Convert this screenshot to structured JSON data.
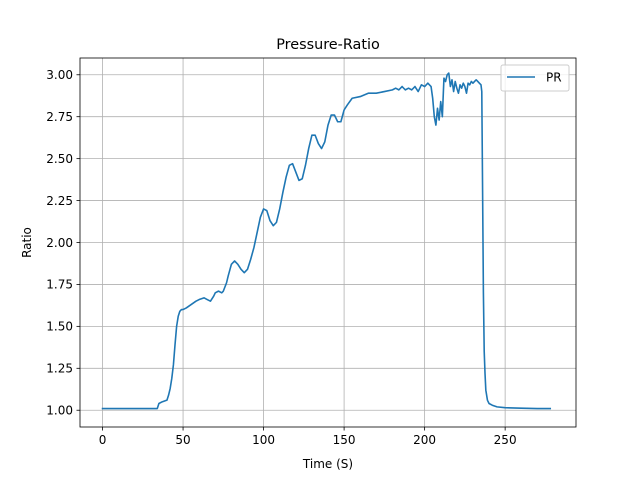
{
  "chart_data": {
    "type": "line",
    "title": "Pressure-Ratio",
    "xlabel": "Time (S)",
    "ylabel": "Ratio",
    "xlim": [
      -14,
      294
    ],
    "ylim": [
      0.9,
      3.1
    ],
    "xticks": [
      0,
      50,
      100,
      150,
      200,
      250
    ],
    "yticks": [
      1.0,
      1.25,
      1.5,
      1.75,
      2.0,
      2.25,
      2.5,
      2.75,
      3.0
    ],
    "ytick_labels": [
      "1.00",
      "1.25",
      "1.50",
      "1.75",
      "2.00",
      "2.25",
      "2.50",
      "2.75",
      "3.00"
    ],
    "grid": true,
    "legend": "top-right",
    "series": [
      {
        "name": "PR",
        "color": "#1f77b4",
        "x": [
          0,
          10,
          20,
          30,
          34,
          35,
          37,
          40,
          41,
          42,
          43,
          44,
          45,
          46,
          47,
          48,
          49,
          50,
          52,
          55,
          58,
          60,
          63,
          65,
          67,
          69,
          70,
          72,
          74,
          75,
          77,
          78,
          80,
          82,
          84,
          86,
          88,
          90,
          92,
          94,
          96,
          98,
          100,
          102,
          104,
          106,
          108,
          110,
          112,
          114,
          116,
          118,
          120,
          122,
          124,
          126,
          128,
          130,
          132,
          134,
          136,
          138,
          140,
          142,
          144,
          146,
          148,
          150,
          152,
          155,
          160,
          165,
          170,
          175,
          180,
          182,
          184,
          186,
          188,
          190,
          192,
          194,
          196,
          198,
          200,
          202,
          204,
          205,
          206,
          207,
          208,
          209,
          210,
          211,
          212,
          213,
          214,
          215,
          216,
          217,
          218,
          219,
          220,
          221,
          222,
          223,
          224,
          225,
          226,
          227,
          228,
          229,
          230,
          231,
          232,
          233,
          234,
          235,
          235.5,
          236,
          236.5,
          237,
          237.5,
          238,
          239,
          240,
          242,
          245,
          250,
          260,
          270,
          278
        ],
        "y": [
          1.01,
          1.01,
          1.01,
          1.01,
          1.01,
          1.04,
          1.05,
          1.06,
          1.09,
          1.13,
          1.19,
          1.27,
          1.39,
          1.5,
          1.56,
          1.59,
          1.6,
          1.6,
          1.61,
          1.63,
          1.65,
          1.66,
          1.67,
          1.66,
          1.65,
          1.68,
          1.7,
          1.71,
          1.7,
          1.71,
          1.76,
          1.8,
          1.87,
          1.89,
          1.87,
          1.84,
          1.82,
          1.84,
          1.9,
          1.97,
          2.06,
          2.15,
          2.2,
          2.19,
          2.13,
          2.1,
          2.12,
          2.2,
          2.3,
          2.39,
          2.46,
          2.47,
          2.42,
          2.37,
          2.38,
          2.46,
          2.56,
          2.64,
          2.64,
          2.59,
          2.56,
          2.6,
          2.7,
          2.76,
          2.76,
          2.72,
          2.72,
          2.79,
          2.82,
          2.86,
          2.87,
          2.89,
          2.89,
          2.9,
          2.91,
          2.92,
          2.91,
          2.93,
          2.91,
          2.92,
          2.91,
          2.93,
          2.9,
          2.94,
          2.93,
          2.95,
          2.93,
          2.86,
          2.75,
          2.7,
          2.8,
          2.73,
          2.84,
          2.75,
          2.98,
          2.96,
          3.0,
          3.01,
          2.93,
          2.97,
          2.9,
          2.96,
          2.92,
          2.89,
          2.94,
          2.92,
          2.95,
          2.93,
          2.89,
          2.95,
          2.94,
          2.96,
          2.95,
          2.96,
          2.97,
          2.96,
          2.95,
          2.94,
          2.9,
          2.3,
          1.7,
          1.35,
          1.22,
          1.12,
          1.06,
          1.04,
          1.03,
          1.02,
          1.015,
          1.012,
          1.01,
          1.01
        ]
      }
    ]
  }
}
